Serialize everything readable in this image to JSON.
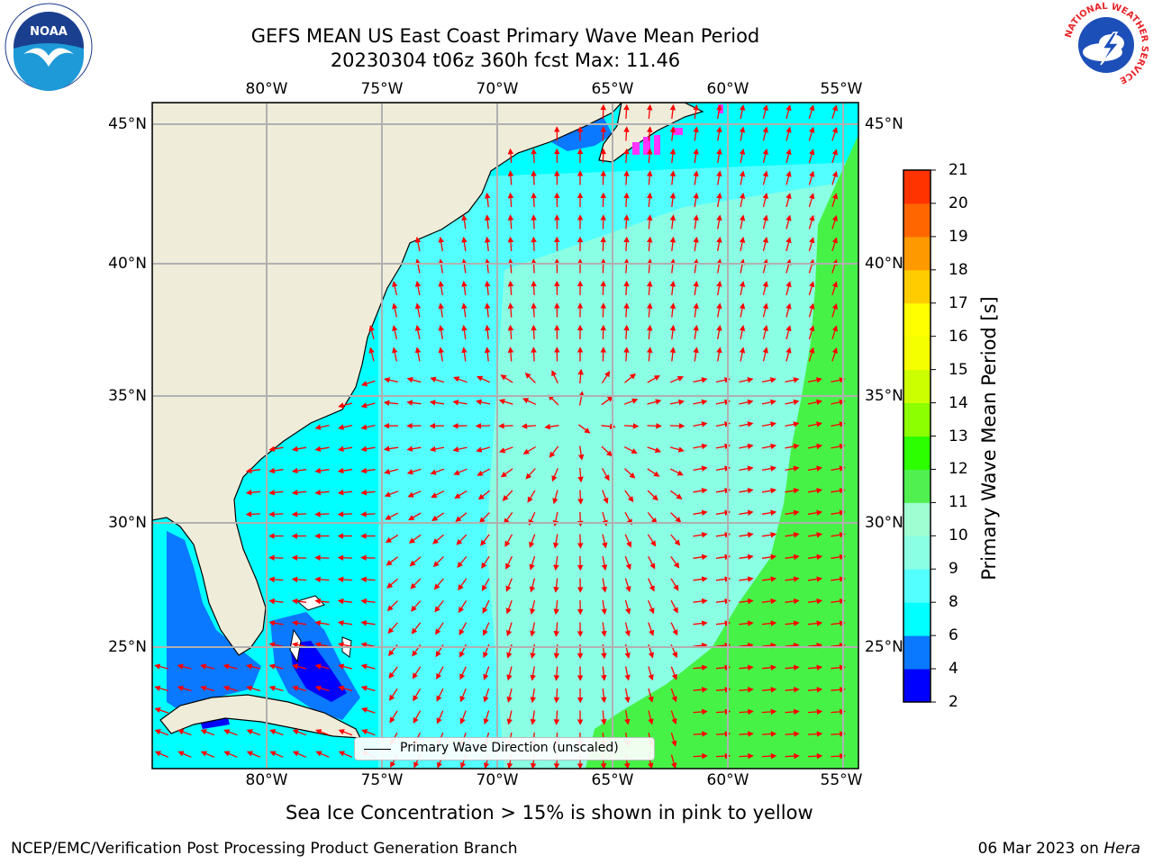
{
  "title": {
    "line1": "GEFS MEAN US East Coast Primary Wave Mean Period",
    "line2": "20230304 t06z 360h fcst   Max: 11.46"
  },
  "map": {
    "lon_ticks": [
      "80°W",
      "75°W",
      "70°W",
      "65°W",
      "60°W",
      "55°W"
    ],
    "lat_ticks": [
      "45°N",
      "40°N",
      "35°N",
      "30°N",
      "25°N"
    ],
    "land_color": "#efedda",
    "grid_color": "#b0b0b0",
    "arrow_color": "#ff0000",
    "legend_label": "Primary Wave Direction (unscaled)"
  },
  "colorbar": {
    "title": "Primary Wave Mean Period [s]",
    "levels": [
      2,
      4,
      6,
      8,
      9,
      10,
      11,
      12,
      13,
      14,
      15,
      16,
      17,
      18,
      19,
      20,
      21
    ],
    "colors": [
      "#0000ff",
      "#0a78ff",
      "#00ffff",
      "#54ffff",
      "#8affe3",
      "#a0ffd2",
      "#50f050",
      "#2cff00",
      "#8cff00",
      "#ccff00",
      "#f5ff00",
      "#ffff00",
      "#ffcc00",
      "#ff9900",
      "#ff6600",
      "#ff3300",
      "#ff0000"
    ]
  },
  "subcaption": "Sea Ice Concentration > 15% is shown in pink to yellow",
  "footer": {
    "left": "NCEP/EMC/Verification Post Processing Product Generation Branch",
    "date": "06 Mar 2023 on ",
    "host": "Hera"
  },
  "logos": {
    "noaa_text": "NOAA",
    "nws_ring_text": "NATIONAL WEATHER SERVICE"
  }
}
